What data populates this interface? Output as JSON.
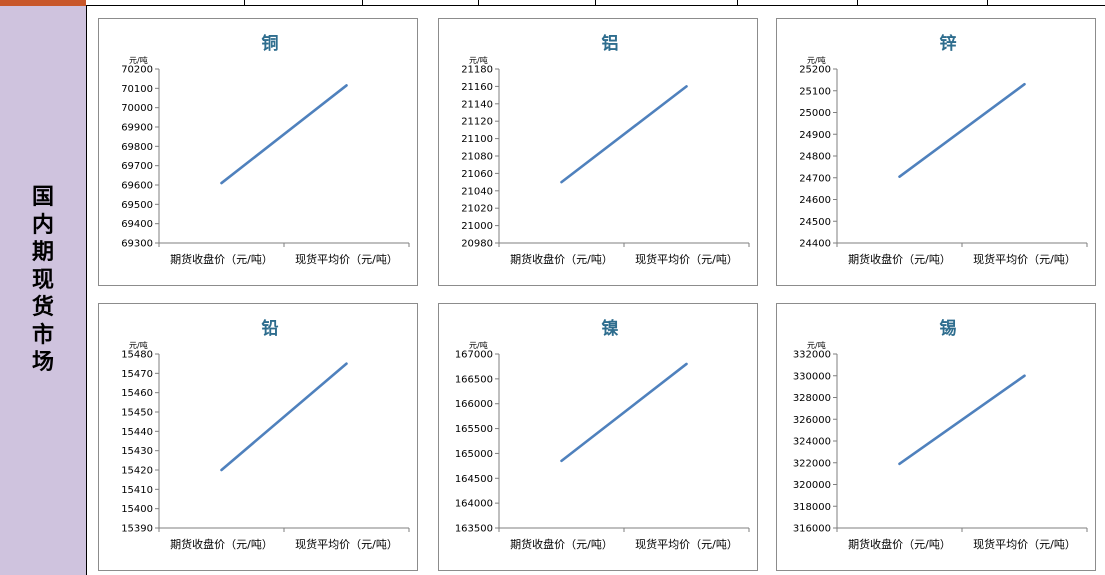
{
  "side_title": "国内期现货市场",
  "colors": {
    "line": "#4f81bd",
    "title": "#2e6d8e",
    "side_band": "#cfc3de",
    "top_corner": "#c8572b"
  },
  "chart_data": [
    {
      "type": "line",
      "title": "铜",
      "ylabel": "元/吨",
      "categories": [
        "期货收盘价（元/吨）",
        "现货平均价（元/吨）"
      ],
      "values": [
        69610,
        70115
      ],
      "yticks": [
        69300,
        69400,
        69500,
        69600,
        69700,
        69800,
        69900,
        70000,
        70100,
        70200
      ],
      "ylim": [
        69300,
        70200
      ]
    },
    {
      "type": "line",
      "title": "铝",
      "ylabel": "元/吨",
      "categories": [
        "期货收盘价（元/吨）",
        "现货平均价（元/吨）"
      ],
      "values": [
        21050,
        21160
      ],
      "yticks": [
        20980,
        21000,
        21020,
        21040,
        21060,
        21080,
        21100,
        21120,
        21140,
        21160,
        21180
      ],
      "ylim": [
        20980,
        21180
      ]
    },
    {
      "type": "line",
      "title": "锌",
      "ylabel": "元/吨",
      "categories": [
        "期货收盘价（元/吨）",
        "现货平均价（元/吨）"
      ],
      "values": [
        24705,
        25130
      ],
      "yticks": [
        24400,
        24500,
        24600,
        24700,
        24800,
        24900,
        25000,
        25100,
        25200
      ],
      "ylim": [
        24400,
        25200
      ]
    },
    {
      "type": "line",
      "title": "铅",
      "ylabel": "元/吨",
      "categories": [
        "期货收盘价（元/吨）",
        "现货平均价（元/吨）"
      ],
      "values": [
        15420,
        15475
      ],
      "yticks": [
        15390,
        15400,
        15410,
        15420,
        15430,
        15440,
        15450,
        15460,
        15470,
        15480
      ],
      "ylim": [
        15390,
        15480
      ]
    },
    {
      "type": "line",
      "title": "镍",
      "ylabel": "元/吨",
      "categories": [
        "期货收盘价（元/吨）",
        "现货平均价（元/吨）"
      ],
      "values": [
        164850,
        166800
      ],
      "yticks": [
        163500,
        164000,
        164500,
        165000,
        165500,
        166000,
        166500,
        167000
      ],
      "ylim": [
        163500,
        167000
      ]
    },
    {
      "type": "line",
      "title": "锡",
      "ylabel": "元/吨",
      "categories": [
        "期货收盘价（元/吨）",
        "现货平均价（元/吨）"
      ],
      "values": [
        321900,
        330000
      ],
      "yticks": [
        316000,
        318000,
        320000,
        322000,
        324000,
        326000,
        328000,
        330000,
        332000
      ],
      "ylim": [
        316000,
        332000
      ]
    }
  ]
}
